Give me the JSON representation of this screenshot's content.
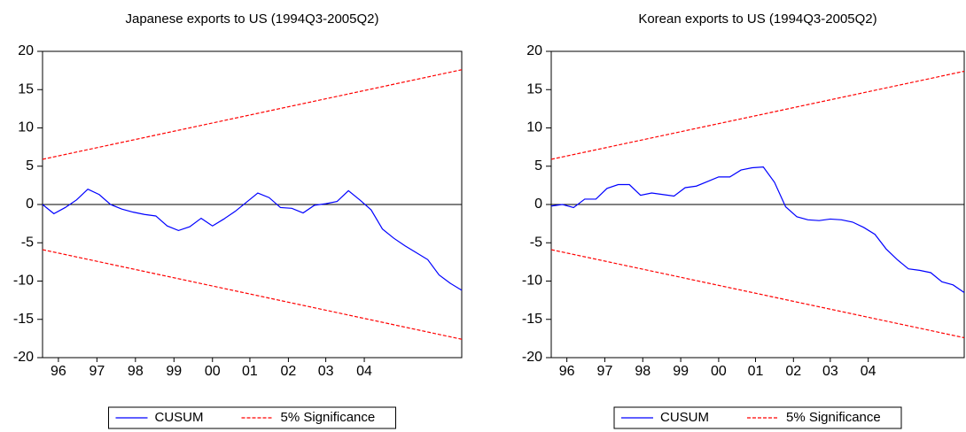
{
  "chart_data": [
    {
      "type": "line",
      "title": "Japanese exports to US (1994Q3-2005Q2)",
      "xlim": [
        0,
        37
      ],
      "xticks": [
        {
          "value": 1.4,
          "label": "96"
        },
        {
          "value": 4.8,
          "label": "97"
        },
        {
          "value": 8.2,
          "label": "98"
        },
        {
          "value": 11.6,
          "label": "99"
        },
        {
          "value": 15,
          "label": "00"
        },
        {
          "value": 18.3,
          "label": "01"
        },
        {
          "value": 21.7,
          "label": "02"
        },
        {
          "value": 25,
          "label": "03"
        },
        {
          "value": 28.4,
          "label": "04"
        }
      ],
      "ylim": [
        -20,
        20
      ],
      "yticks": [
        -20,
        -15,
        -10,
        -5,
        0,
        5,
        10,
        15,
        20
      ],
      "series": [
        {
          "name": "CUSUM",
          "color": "#0000ff",
          "values": [
            0,
            -1.2,
            -0.4,
            0.6,
            2.0,
            1.3,
            0,
            -0.6,
            -1.0,
            -1.3,
            -1.5,
            -2.8,
            -3.4,
            -2.9,
            -1.8,
            -2.8,
            -1.9,
            -0.9,
            0.3,
            1.5,
            0.9,
            -0.4,
            -0.5,
            -1.1,
            -0.1,
            0.1,
            0.4,
            1.8,
            0.6,
            -0.7,
            -3.2,
            -4.4,
            -5.4,
            -6.3,
            -7.2,
            -9.2,
            -10.3,
            -11.2
          ]
        }
      ],
      "bands": {
        "name": "5% Significance",
        "color": "#ff0000",
        "x": [
          0,
          37
        ],
        "upper": [
          5.9,
          17.6
        ],
        "lower": [
          -5.9,
          -17.6
        ]
      }
    },
    {
      "type": "line",
      "title": "Korean exports to US (1994Q3-2005Q2)",
      "xlim": [
        0,
        37
      ],
      "xticks": [
        {
          "value": 1.4,
          "label": "96"
        },
        {
          "value": 4.8,
          "label": "97"
        },
        {
          "value": 8.2,
          "label": "98"
        },
        {
          "value": 11.6,
          "label": "99"
        },
        {
          "value": 15,
          "label": "00"
        },
        {
          "value": 18.3,
          "label": "01"
        },
        {
          "value": 21.7,
          "label": "02"
        },
        {
          "value": 25,
          "label": "03"
        },
        {
          "value": 28.4,
          "label": "04"
        }
      ],
      "ylim": [
        -20,
        20
      ],
      "yticks": [
        -20,
        -15,
        -10,
        -5,
        0,
        5,
        10,
        15,
        20
      ],
      "series": [
        {
          "name": "CUSUM",
          "color": "#0000ff",
          "values": [
            -0.2,
            0,
            -0.4,
            0.7,
            0.7,
            2.1,
            2.6,
            2.6,
            1.2,
            1.5,
            1.3,
            1.1,
            2.2,
            2.4,
            3.0,
            3.6,
            3.6,
            4.5,
            4.8,
            4.9,
            2.9,
            -0.3,
            -1.6,
            -2.0,
            -2.1,
            -1.9,
            -2.0,
            -2.3,
            -3.0,
            -3.9,
            -5.8,
            -7.2,
            -8.4,
            -8.6,
            -8.9,
            -10.1,
            -10.5,
            -11.5
          ]
        }
      ],
      "bands": {
        "name": "5% Significance",
        "color": "#ff0000",
        "x": [
          0,
          37
        ],
        "upper": [
          5.9,
          17.4
        ],
        "lower": [
          -5.9,
          -17.4
        ]
      }
    }
  ]
}
